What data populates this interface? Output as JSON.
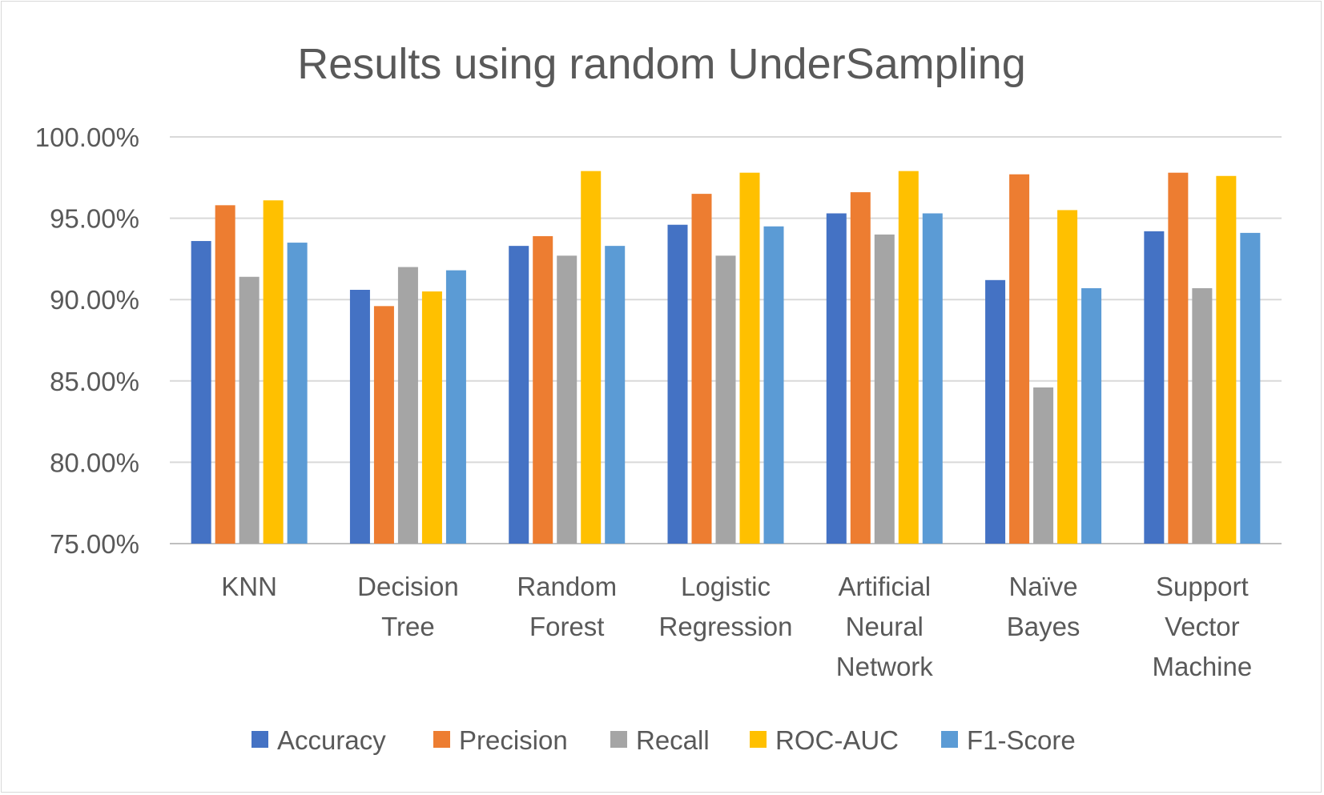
{
  "chart_data": {
    "type": "bar",
    "title": "Results using random UnderSampling",
    "categories": [
      [
        "KNN"
      ],
      [
        "Decision",
        "Tree"
      ],
      [
        "Random",
        "Forest"
      ],
      [
        "Logistic",
        "Regression"
      ],
      [
        "Artificial",
        "Neural",
        "Network"
      ],
      [
        "Naïve",
        "Bayes"
      ],
      [
        "Support",
        "Vector",
        "Machine"
      ]
    ],
    "ylim": [
      75,
      100
    ],
    "yticks": [
      75,
      80,
      85,
      90,
      95,
      100
    ],
    "ytick_labels": [
      "75.00%",
      "80.00%",
      "85.00%",
      "90.00%",
      "95.00%",
      "100.00%"
    ],
    "grid": true,
    "legend_position": "bottom",
    "series": [
      {
        "name": "Accuracy",
        "color": "#4472C4",
        "values": [
          93.6,
          90.6,
          93.3,
          94.6,
          95.3,
          91.2,
          94.2
        ]
      },
      {
        "name": "Precision",
        "color": "#ED7D31",
        "values": [
          95.8,
          89.6,
          93.9,
          96.5,
          96.6,
          97.7,
          97.8
        ]
      },
      {
        "name": "Recall",
        "color": "#A5A5A5",
        "values": [
          91.4,
          92.0,
          92.7,
          92.7,
          94.0,
          84.6,
          90.7
        ]
      },
      {
        "name": "ROC-AUC",
        "color": "#FFC000",
        "values": [
          96.1,
          90.5,
          97.9,
          97.8,
          97.9,
          95.5,
          97.6
        ]
      },
      {
        "name": "F1-Score",
        "color": "#5B9BD5",
        "values": [
          93.5,
          91.8,
          93.3,
          94.5,
          95.3,
          90.7,
          94.1
        ]
      }
    ]
  }
}
